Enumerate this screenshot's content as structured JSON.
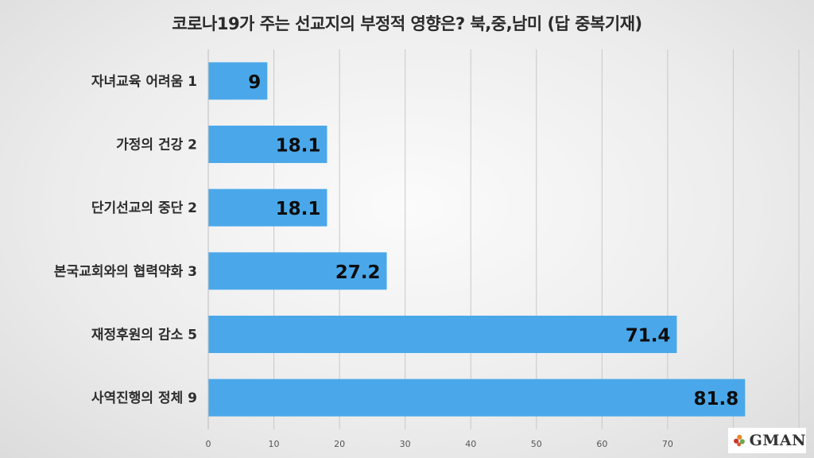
{
  "chart_data": {
    "type": "bar",
    "orientation": "horizontal",
    "title": "코로나19가 주는 선교지의 부정적 영향은? 북,중,남미 (답 중복기재)",
    "categories": [
      "자녀교육 어려움 1",
      "가정의 건강 2",
      "단기선교의 중단 2",
      "본국교회와의 협력약화 3",
      "재정후원의 감소 5",
      "사역진행의 정체 9"
    ],
    "values": [
      9,
      18.1,
      18.1,
      27.2,
      71.4,
      81.8
    ],
    "value_labels": [
      "9",
      "18.1",
      "18.1",
      "27.2",
      "71.4",
      "81.8"
    ],
    "x_ticks": [
      "0",
      "10",
      "20",
      "30",
      "40",
      "50",
      "60",
      "70",
      "80",
      "90"
    ],
    "xlim": [
      0,
      90
    ],
    "grid": true,
    "bar_color": "#4aa8ea",
    "legend": "none"
  },
  "logo": {
    "text": "GMAN",
    "icon": "flower-logo-icon"
  }
}
